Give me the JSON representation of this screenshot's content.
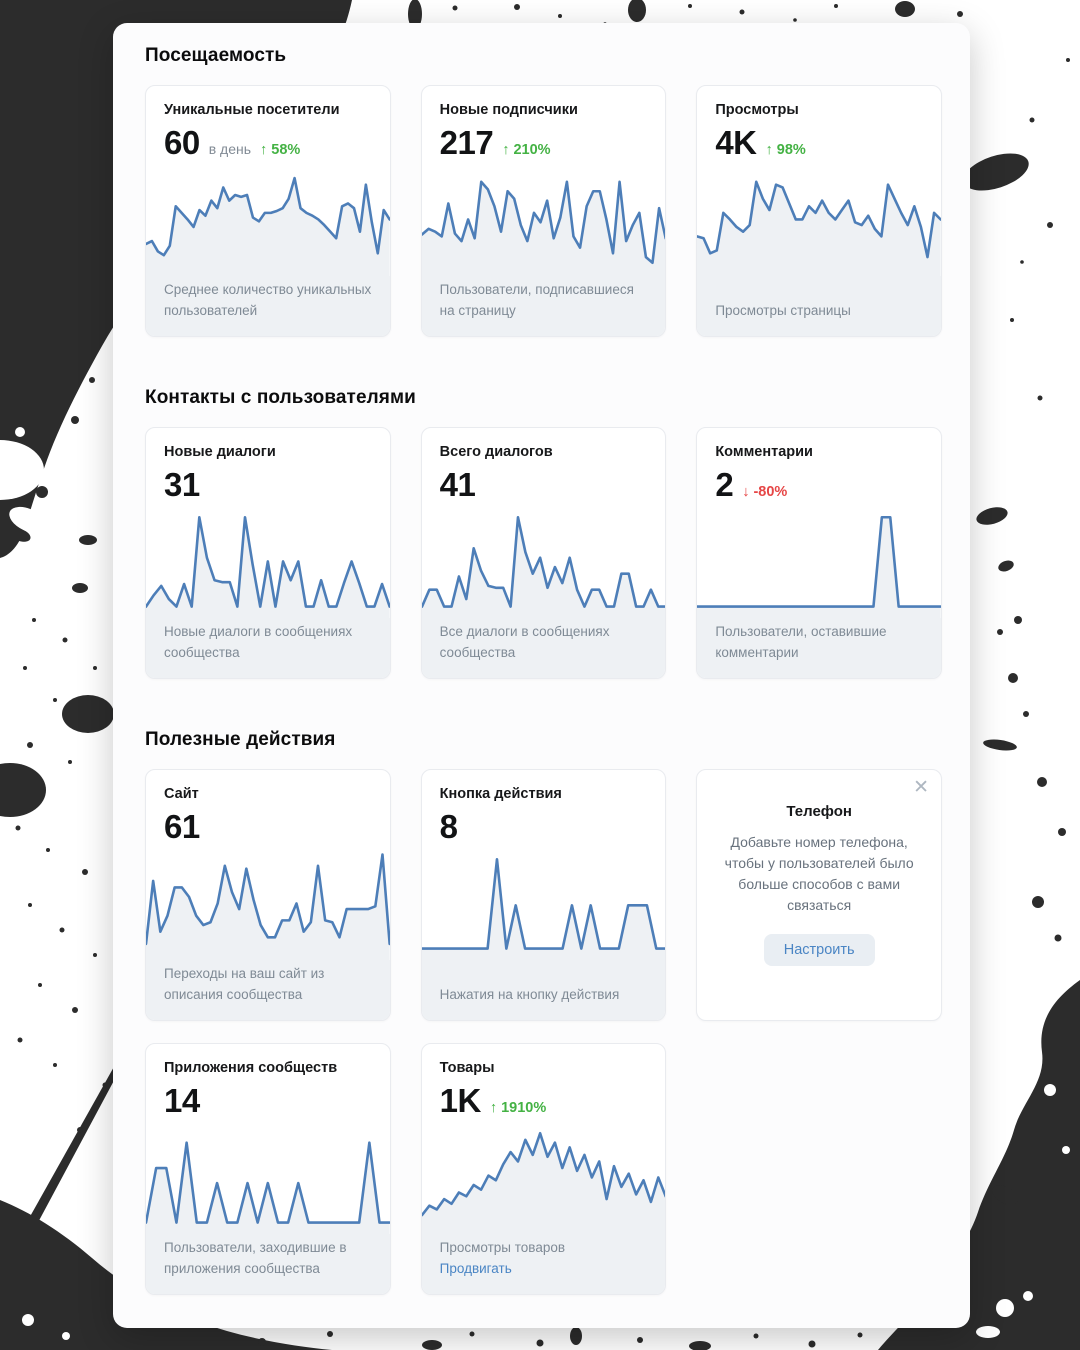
{
  "colors": {
    "chart_line": "#4d7eb8",
    "chart_fill": "#eef1f4",
    "positive_green": "#44b244",
    "negative_red": "#e64646",
    "link_blue": "#4a85c4",
    "button_bg": "#e9eef3"
  },
  "promo": {
    "title": "Телефон",
    "body": "Добавьте номер телефона, чтобы у пользователей было больше способов с вами связаться",
    "button": "Настроить",
    "close_icon": "✕"
  },
  "sections": [
    {
      "title": "Посещаемость",
      "cards": [
        {
          "title": "Уникальные посетители",
          "value": "60",
          "unit": "в день",
          "delta": {
            "arrow": "↑",
            "percent": "58%",
            "direction": "up"
          },
          "desc": "Среднее количество уникальных пользователей",
          "points": [
            22,
            25,
            14,
            10,
            20,
            62,
            55,
            48,
            40,
            58,
            52,
            68,
            60,
            82,
            68,
            74,
            72,
            74,
            50,
            46,
            55,
            55,
            57,
            60,
            70,
            92,
            60,
            55,
            52,
            48,
            42,
            35,
            28,
            62,
            65,
            60,
            35,
            85,
            45,
            12,
            58,
            48
          ]
        },
        {
          "title": "Новые подписчики",
          "value": "217",
          "delta": {
            "arrow": "↑",
            "percent": "210%",
            "direction": "up"
          },
          "desc": "Пользователи, подписавшиеся на страницу",
          "points": [
            32,
            38,
            35,
            30,
            65,
            33,
            25,
            48,
            28,
            88,
            80,
            62,
            35,
            78,
            70,
            42,
            25,
            55,
            45,
            68,
            28,
            50,
            88,
            30,
            18,
            62,
            78,
            78,
            48,
            12,
            88,
            25,
            42,
            55,
            8,
            2,
            60,
            28
          ]
        },
        {
          "title": "Просмотры",
          "value": "4K",
          "delta": {
            "arrow": "↑",
            "percent": "98%",
            "direction": "up"
          },
          "desc": "Просмотры страницы",
          "points": [
            30,
            28,
            12,
            15,
            55,
            48,
            40,
            35,
            42,
            88,
            70,
            58,
            85,
            82,
            65,
            48,
            48,
            62,
            55,
            68,
            55,
            48,
            58,
            68,
            45,
            42,
            52,
            38,
            30,
            85,
            70,
            55,
            42,
            62,
            40,
            8,
            55,
            48
          ]
        }
      ]
    },
    {
      "title": "Контакты с пользователями",
      "cards": [
        {
          "title": "Новые диалоги",
          "value": "31",
          "desc": "Новые диалоги в сообщениях сообщества",
          "points": [
            0,
            12,
            22,
            8,
            0,
            24,
            0,
            95,
            52,
            28,
            26,
            26,
            0,
            95,
            45,
            0,
            48,
            0,
            48,
            28,
            48,
            0,
            0,
            28,
            0,
            0,
            25,
            48,
            25,
            0,
            0,
            24,
            0
          ]
        },
        {
          "title": "Всего диалогов",
          "value": "41",
          "desc": "Все диалоги в сообщениях сообщества",
          "points": [
            0,
            18,
            18,
            0,
            0,
            32,
            8,
            62,
            38,
            22,
            20,
            20,
            0,
            95,
            58,
            35,
            52,
            20,
            42,
            25,
            52,
            18,
            0,
            18,
            18,
            0,
            0,
            35,
            35,
            0,
            0,
            18,
            0,
            0
          ]
        },
        {
          "title": "Комментарии",
          "value": "2",
          "delta": {
            "arrow": "↓",
            "percent": "-80%",
            "direction": "down"
          },
          "desc": "Пользователи, оставившие комментарии",
          "points": [
            0,
            0,
            0,
            0,
            0,
            0,
            0,
            0,
            0,
            0,
            0,
            0,
            0,
            0,
            0,
            0,
            0,
            0,
            0,
            0,
            0,
            0,
            95,
            95,
            0,
            0,
            0,
            0,
            0,
            0
          ]
        }
      ]
    },
    {
      "title": "Полезные действия",
      "cards": [
        {
          "title": "Сайт",
          "value": "61",
          "desc": "Переходы на ваш сайт из описания сообщества",
          "points": [
            5,
            72,
            18,
            35,
            65,
            65,
            55,
            35,
            25,
            28,
            48,
            88,
            60,
            42,
            85,
            52,
            25,
            12,
            12,
            30,
            30,
            48,
            18,
            28,
            88,
            30,
            28,
            12,
            42,
            42,
            42,
            42,
            45,
            100,
            5
          ]
        },
        {
          "title": "Кнопка действия",
          "value": "8",
          "desc": "Нажатия на кнопку действия",
          "points": [
            0,
            0,
            0,
            0,
            0,
            0,
            0,
            0,
            95,
            0,
            46,
            0,
            0,
            0,
            0,
            0,
            46,
            0,
            46,
            0,
            0,
            0,
            46,
            46,
            46,
            0,
            0
          ]
        }
      ],
      "cards_row2": [
        {
          "title": "Приложения сообществ",
          "value": "14",
          "desc": "Пользователи, заходившие в приложения сообщества",
          "points": [
            0,
            58,
            58,
            0,
            85,
            0,
            0,
            42,
            0,
            0,
            42,
            0,
            42,
            0,
            0,
            42,
            0,
            0,
            0,
            0,
            0,
            0,
            85,
            0,
            0
          ]
        },
        {
          "title": "Товары",
          "value": "1K",
          "delta": {
            "arrow": "↑",
            "percent": "1910%",
            "direction": "up"
          },
          "desc": "Просмотры товаров",
          "link": "Продвигать",
          "points": [
            8,
            18,
            14,
            25,
            20,
            32,
            28,
            40,
            35,
            50,
            45,
            62,
            75,
            65,
            88,
            72,
            95,
            70,
            85,
            58,
            80,
            55,
            72,
            48,
            65,
            25,
            60,
            38,
            52,
            30,
            45,
            22,
            48,
            28
          ]
        }
      ]
    }
  ]
}
